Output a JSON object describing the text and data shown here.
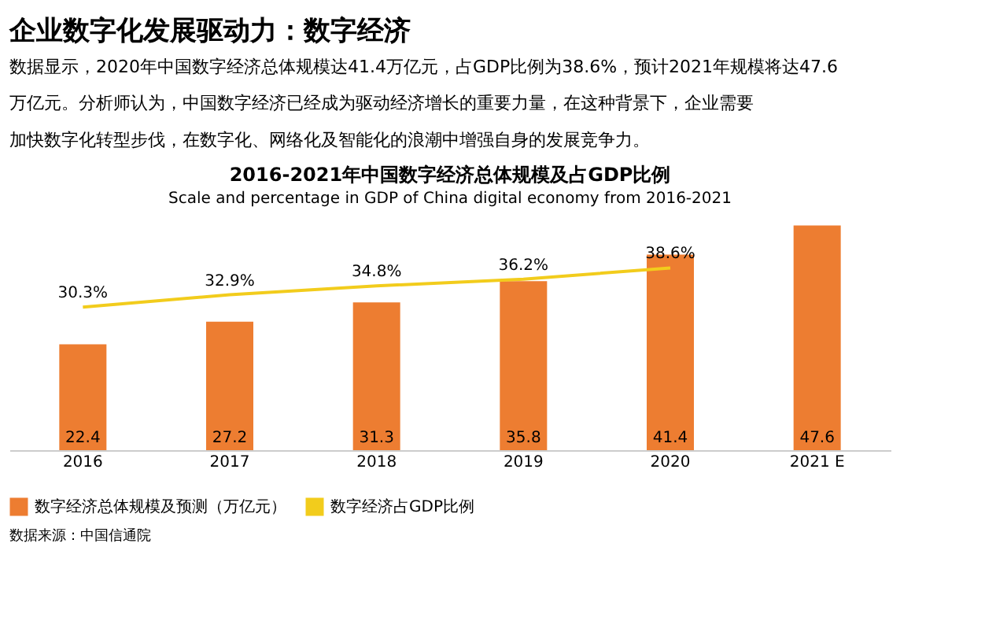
{
  "chart_data": {
    "type": "bar",
    "title": "2016-2021年中国数字经济总体规模及占GDP比例",
    "subtitle": "Scale and percentage in GDP of China digital economy from 2016-2021",
    "categories": [
      "2016",
      "2017",
      "2018",
      "2019",
      "2020",
      "2021 E"
    ],
    "series": [
      {
        "name": "数字经济总体规模及预测（万亿元）",
        "color": "#ed7d31",
        "values": [
          22.4,
          27.2,
          31.3,
          35.8,
          41.4,
          47.6
        ],
        "value_labels": [
          "22.4",
          "27.2",
          "31.3",
          "35.8",
          "41.4",
          "47.6"
        ]
      },
      {
        "name": "数字经济占GDP比例",
        "type": "line",
        "color": "#f2cc1c",
        "marker": "none",
        "values": [
          30.3,
          32.9,
          34.8,
          36.2,
          38.6,
          null
        ],
        "value_labels": [
          "30.3%",
          "32.9%",
          "34.8%",
          "36.2%",
          "38.6%",
          null
        ]
      }
    ],
    "legend": "bottom",
    "annotations": [
      "企业数字化发展驱动力：数字经济",
      "数据显示，2020年中国数字经济总体规模达41.4万亿元，占GDP比例为38.6%，预计2021年规模将达47.6",
      "万亿元。分析师认为，中国数字经济已经成为驱动经济增长的重要力量，在这种背景下，企业需要",
      "加快数字化转型步伐，在数字化、网络化及智能化的浪潮中增强自身的发展竞争力。",
      "数据来源：中国信通院"
    ]
  }
}
